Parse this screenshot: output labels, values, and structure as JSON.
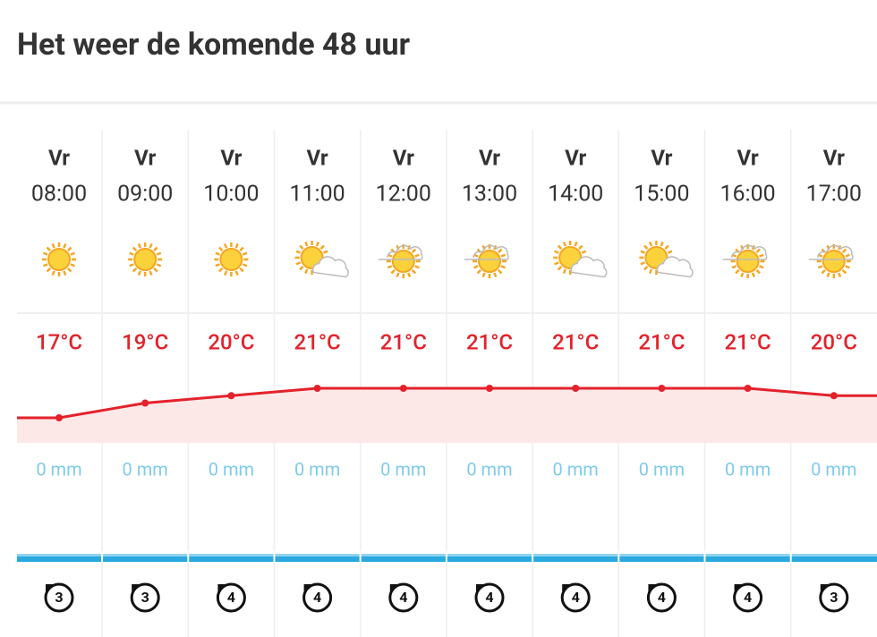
{
  "header": {
    "title": "Het weer de komende 48 uur"
  },
  "hours": [
    {
      "day": "Vr",
      "time": "08:00",
      "temp": 17,
      "temp_label": "17°C",
      "rain": "0 mm",
      "wind": 3
    },
    {
      "day": "Vr",
      "time": "09:00",
      "temp": 19,
      "temp_label": "19°C",
      "rain": "0 mm",
      "wind": 3
    },
    {
      "day": "Vr",
      "time": "10:00",
      "temp": 20,
      "temp_label": "20°C",
      "rain": "0 mm",
      "wind": 4
    },
    {
      "day": "Vr",
      "time": "11:00",
      "temp": 21,
      "temp_label": "21°C",
      "rain": "0 mm",
      "wind": 4
    },
    {
      "day": "Vr",
      "time": "12:00",
      "temp": 21,
      "temp_label": "21°C",
      "rain": "0 mm",
      "wind": 4
    },
    {
      "day": "Vr",
      "time": "13:00",
      "temp": 21,
      "temp_label": "21°C",
      "rain": "0 mm",
      "wind": 4
    },
    {
      "day": "Vr",
      "time": "14:00",
      "temp": 21,
      "temp_label": "21°C",
      "rain": "0 mm",
      "wind": 4
    },
    {
      "day": "Vr",
      "time": "15:00",
      "temp": 21,
      "temp_label": "21°C",
      "rain": "0 mm",
      "wind": 4
    },
    {
      "day": "Vr",
      "time": "16:00",
      "temp": 21,
      "temp_label": "21°C",
      "rain": "0 mm",
      "wind": 4
    },
    {
      "day": "Vr",
      "time": "17:00",
      "temp": 20,
      "temp_label": "20°C",
      "rain": "0 mm",
      "wind": 3
    }
  ]
}
